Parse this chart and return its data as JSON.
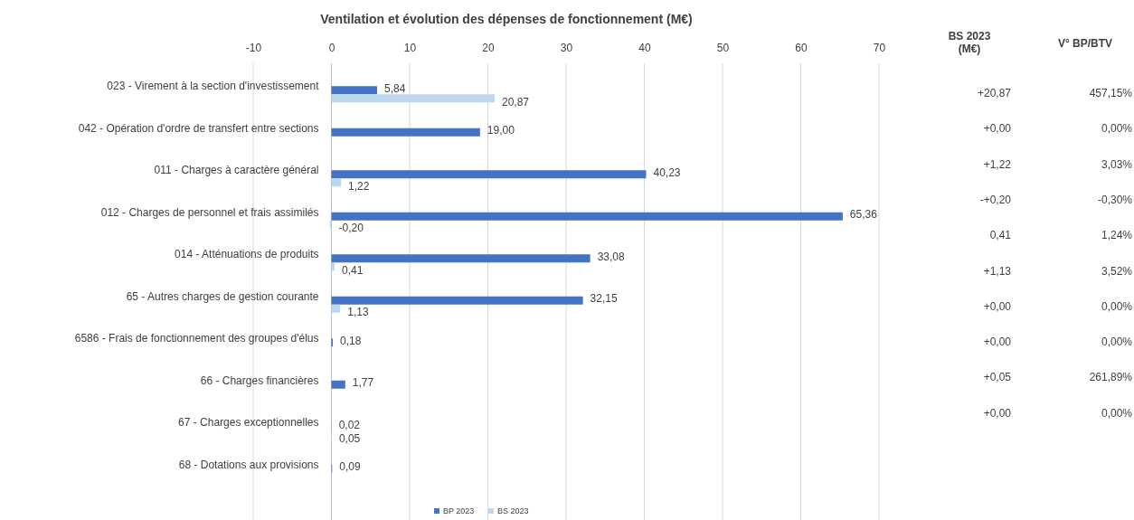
{
  "chart_data": {
    "type": "bar",
    "orientation": "horizontal",
    "title": "Ventilation et évolution des dépenses de fonctionnement (M€)",
    "categories": [
      "023 - Virement à la section d'investissement",
      "042 - Opération d'ordre de transfert entre sections",
      "011 - Charges à caractère général",
      "012 - Charges de personnel et frais assimilés",
      "014 - Atténuations de produits",
      "65 - Autres charges de gestion courante",
      "6586 - Frais de fonctionnement des groupes d'élus",
      "66 - Charges financières",
      "67 - Charges exceptionnelles",
      "68 - Dotations aux provisions"
    ],
    "series": [
      {
        "name": "BP 2023",
        "color": "#4472c4",
        "values": [
          5.84,
          19.0,
          40.23,
          65.36,
          33.08,
          32.15,
          0.18,
          1.77,
          0.02,
          0.09
        ],
        "value_labels": [
          "5,84",
          "19,00",
          "40,23",
          "65,36",
          "33,08",
          "32,15",
          "0,18",
          "1,77",
          "0,02",
          "0,09"
        ]
      },
      {
        "name": "BS 2023",
        "color": "#bdd7ee",
        "values": [
          20.87,
          null,
          1.22,
          -0.2,
          0.41,
          1.13,
          null,
          null,
          0.05,
          null
        ],
        "value_labels": [
          "20,87",
          null,
          "1,22",
          "-0,20",
          "0,41",
          "1,13",
          null,
          null,
          "0,05",
          null
        ]
      }
    ],
    "xlim": [
      -10,
      70
    ],
    "xticks": [
      -10,
      0,
      10,
      20,
      30,
      40,
      50,
      60,
      70
    ],
    "grid": "x",
    "legend": "bottom",
    "annotations": [
      "BS 2023 (M€)",
      "V° BP/BTV",
      "+20,87",
      "457,15%",
      "+0,00",
      "0,00%",
      "+1,22",
      "3,03%",
      "-+0,20",
      "-0,30%",
      "0,41",
      "1,24%",
      "+1,13",
      "3,52%",
      "+0,00",
      "0,00%",
      "+0,00",
      "0,00%",
      "+0,05",
      "261,89%",
      "+0,00",
      "0,00%"
    ]
  }
}
